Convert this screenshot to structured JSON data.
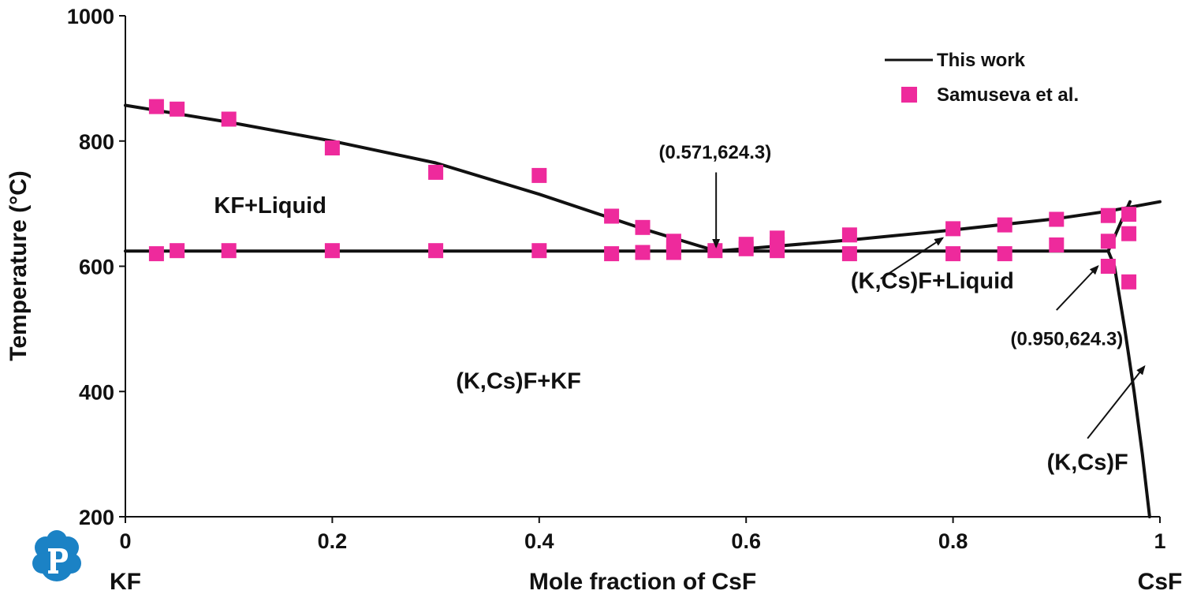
{
  "chart_data": {
    "type": "scatter",
    "xlabel": "Mole fraction of CsF",
    "ylabel": "Temperature (°C)",
    "xlim": [
      0,
      1
    ],
    "ylim": [
      200,
      1000
    ],
    "x_ticks": [
      "0",
      "0.2",
      "0.4",
      "0.6",
      "0.8",
      "1"
    ],
    "y_ticks": [
      "200",
      "400",
      "600",
      "800",
      "1000"
    ],
    "x_tick_values": [
      0,
      0.2,
      0.4,
      0.6,
      0.8,
      1
    ],
    "y_tick_values": [
      200,
      400,
      600,
      800,
      1000
    ],
    "x_end_labels": {
      "left": "KF",
      "right": "CsF"
    },
    "grid": false,
    "legend_position": "top-right",
    "series": [
      {
        "name": "This work",
        "kind": "line",
        "color": "#111111",
        "curves": [
          {
            "part": "liquidus-KF",
            "points": [
              [
                0,
                857
              ],
              [
                0.1,
                830
              ],
              [
                0.2,
                800
              ],
              [
                0.3,
                765
              ],
              [
                0.4,
                715
              ],
              [
                0.5,
                660
              ],
              [
                0.571,
                624.3
              ]
            ]
          },
          {
            "part": "liquidus-KCsF",
            "points": [
              [
                0.571,
                624.3
              ],
              [
                0.6,
                628
              ],
              [
                0.7,
                642
              ],
              [
                0.8,
                658
              ],
              [
                0.9,
                676
              ],
              [
                0.95,
                688
              ],
              [
                1.0,
                703
              ]
            ]
          },
          {
            "part": "eutectic-line",
            "points": [
              [
                0,
                624.3
              ],
              [
                0.95,
                624.3
              ]
            ]
          },
          {
            "part": "solidus",
            "points": [
              [
                0.95,
                624.3
              ],
              [
                0.971,
                703
              ]
            ]
          },
          {
            "part": "solvus",
            "points": [
              [
                0.95,
                624.3
              ],
              [
                0.956,
                600
              ],
              [
                0.966,
                500
              ],
              [
                0.975,
                400
              ],
              [
                0.983,
                300
              ],
              [
                0.99,
                200
              ]
            ]
          }
        ]
      },
      {
        "name": "Samuseva et al.",
        "kind": "scatter",
        "color": "#ee2a9c",
        "points": [
          [
            0.03,
            855
          ],
          [
            0.05,
            851
          ],
          [
            0.1,
            835
          ],
          [
            0.2,
            789
          ],
          [
            0.3,
            750
          ],
          [
            0.4,
            745
          ],
          [
            0.47,
            680
          ],
          [
            0.5,
            662
          ],
          [
            0.53,
            640
          ],
          [
            0.6,
            635
          ],
          [
            0.63,
            645
          ],
          [
            0.7,
            650
          ],
          [
            0.8,
            660
          ],
          [
            0.85,
            666
          ],
          [
            0.9,
            675
          ],
          [
            0.95,
            681
          ],
          [
            0.97,
            683
          ],
          [
            0.03,
            620
          ],
          [
            0.05,
            625
          ],
          [
            0.1,
            625
          ],
          [
            0.2,
            625
          ],
          [
            0.3,
            625
          ],
          [
            0.4,
            625
          ],
          [
            0.47,
            620
          ],
          [
            0.5,
            622
          ],
          [
            0.53,
            622
          ],
          [
            0.53,
            630
          ],
          [
            0.57,
            625
          ],
          [
            0.6,
            628
          ],
          [
            0.63,
            625
          ],
          [
            0.63,
            635
          ],
          [
            0.7,
            620
          ],
          [
            0.8,
            620
          ],
          [
            0.85,
            620
          ],
          [
            0.9,
            634
          ],
          [
            0.95,
            640
          ],
          [
            0.95,
            600
          ],
          [
            0.97,
            652
          ],
          [
            0.97,
            575
          ]
        ]
      }
    ],
    "region_labels": [
      {
        "text": "KF+Liquid",
        "x": 0.14,
        "y": 685
      },
      {
        "text": "(K,Cs)F+KF",
        "x": 0.38,
        "y": 405
      },
      {
        "text": "(K,Cs)F+Liquid",
        "x": 0.78,
        "y": 565
      },
      {
        "text": "(K,Cs)F",
        "x": 0.93,
        "y": 275
      }
    ],
    "annotations": [
      {
        "text": "(0.571,624.3)",
        "text_x": 0.57,
        "text_y": 772,
        "arrow_from": [
          0.571,
          750
        ],
        "arrow_to": [
          0.571,
          631
        ]
      },
      {
        "text": "(0.950,624.3)",
        "text_x": 0.91,
        "text_y": 474,
        "arrow_from": [
          0.9,
          530
        ],
        "arrow_to": [
          0.94,
          600
        ]
      },
      {
        "part": "arrow-to-liquidus",
        "arrow_from": [
          0.73,
          580
        ],
        "arrow_to": [
          0.79,
          645
        ]
      },
      {
        "part": "arrow-to-solvus",
        "arrow_from": [
          0.93,
          325
        ],
        "arrow_to": [
          0.985,
          440
        ]
      }
    ]
  }
}
